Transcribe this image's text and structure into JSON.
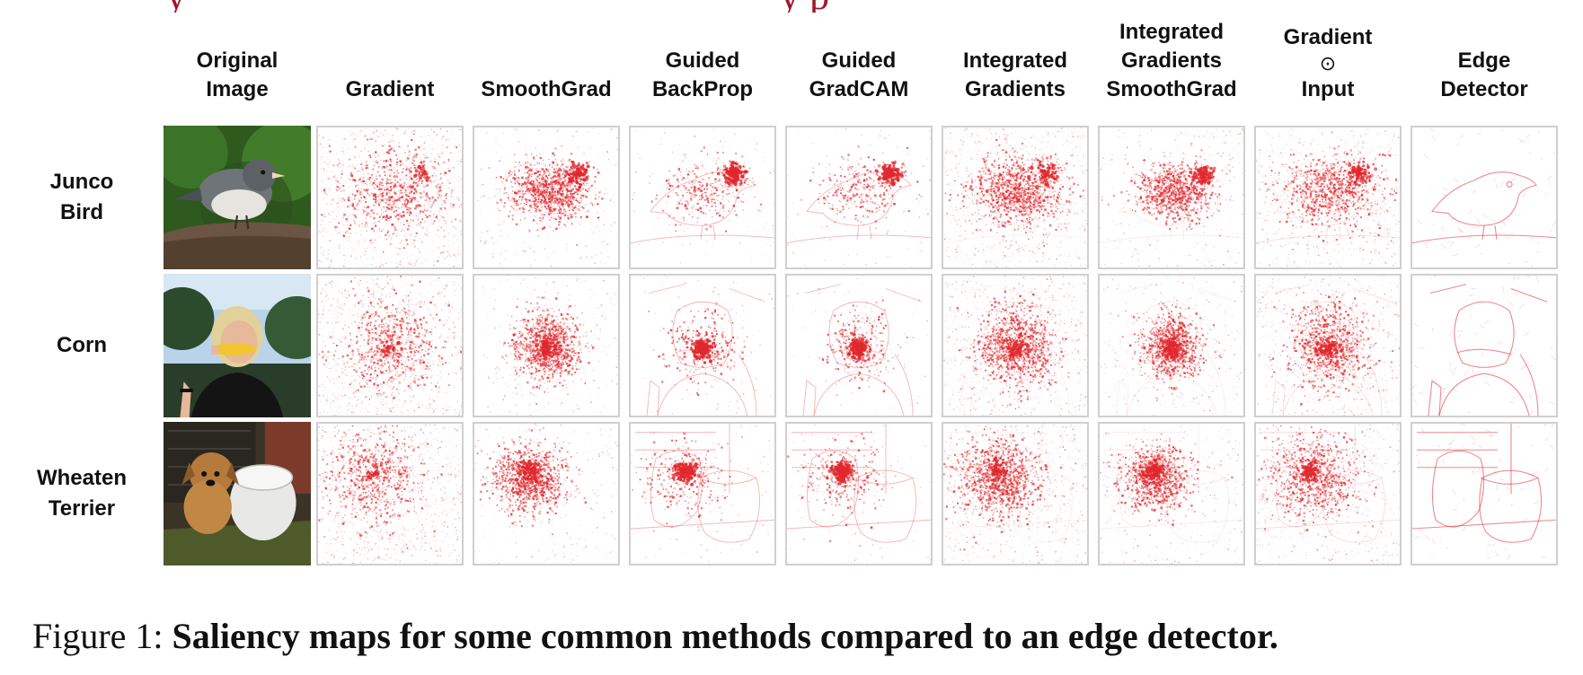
{
  "title_fragment": {
    "left": "y",
    "right": "y   p"
  },
  "columns": [
    {
      "id": "original",
      "lines": [
        "Original",
        "Image"
      ]
    },
    {
      "id": "gradient",
      "lines": [
        "Gradient"
      ]
    },
    {
      "id": "smoothgrad",
      "lines": [
        "SmoothGrad"
      ]
    },
    {
      "id": "guided-backprop",
      "lines": [
        "Guided",
        "BackProp"
      ]
    },
    {
      "id": "guided-gradcam",
      "lines": [
        "Guided",
        "GradCAM"
      ]
    },
    {
      "id": "integrated-gradients",
      "lines": [
        "Integrated",
        "Gradients"
      ]
    },
    {
      "id": "integrated-gradients-smoothgrad",
      "lines": [
        "Integrated",
        "Gradients",
        "SmoothGrad"
      ]
    },
    {
      "id": "gradient-input",
      "lines": [
        "Gradient",
        "⊙",
        "Input"
      ]
    },
    {
      "id": "edge-detector",
      "lines": [
        "Edge",
        "Detector"
      ]
    }
  ],
  "rows": [
    {
      "id": "junco-bird",
      "lines": [
        "Junco",
        "Bird"
      ]
    },
    {
      "id": "corn",
      "lines": [
        "Corn"
      ]
    },
    {
      "id": "wheaten-terrier",
      "lines": [
        "Wheaten",
        "Terrier"
      ]
    }
  ],
  "caption": {
    "prefix": "Figure 1: ",
    "text": "Saliency maps for some common methods compared to an edge detector."
  },
  "colors": {
    "saliency_red": "#e0282d",
    "cell_border": "#cfcfcf",
    "title_red": "#a0162b"
  }
}
